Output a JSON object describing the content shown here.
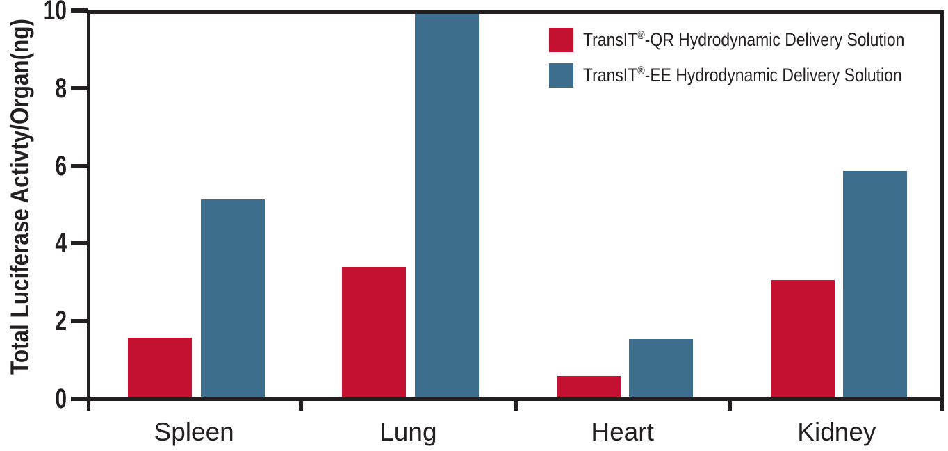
{
  "chart_data": {
    "type": "bar",
    "categories": [
      "Spleen",
      "Lung",
      "Heart",
      "Kidney"
    ],
    "series": [
      {
        "name": "TransIT®-QR Hydrodynamic Delivery Solution",
        "name_prefix": "TransIT",
        "reg_mark": "®",
        "name_rest": "-QR Hydrodynamic Delivery Solution",
        "color": "#c41131",
        "values": [
          1.55,
          3.4,
          0.55,
          3.05
        ]
      },
      {
        "name": "TransIT®-EE Hydrodynamic Delivery Solution",
        "name_prefix": "TransIT",
        "reg_mark": "®",
        "name_rest": "-EE Hydrodynamic Delivery Solution",
        "color": "#3e6e8e",
        "values": [
          5.15,
          10,
          1.5,
          5.9
        ]
      }
    ],
    "ylabel": "Total Luciferase Activty/Organ(ng)",
    "yticks": [
      0,
      2,
      4,
      6,
      8,
      10
    ],
    "ylim": [
      0,
      10
    ],
    "grid": false,
    "legend_position": "top-right",
    "axis_color": "#231f20",
    "background_color": "#ffffff"
  }
}
